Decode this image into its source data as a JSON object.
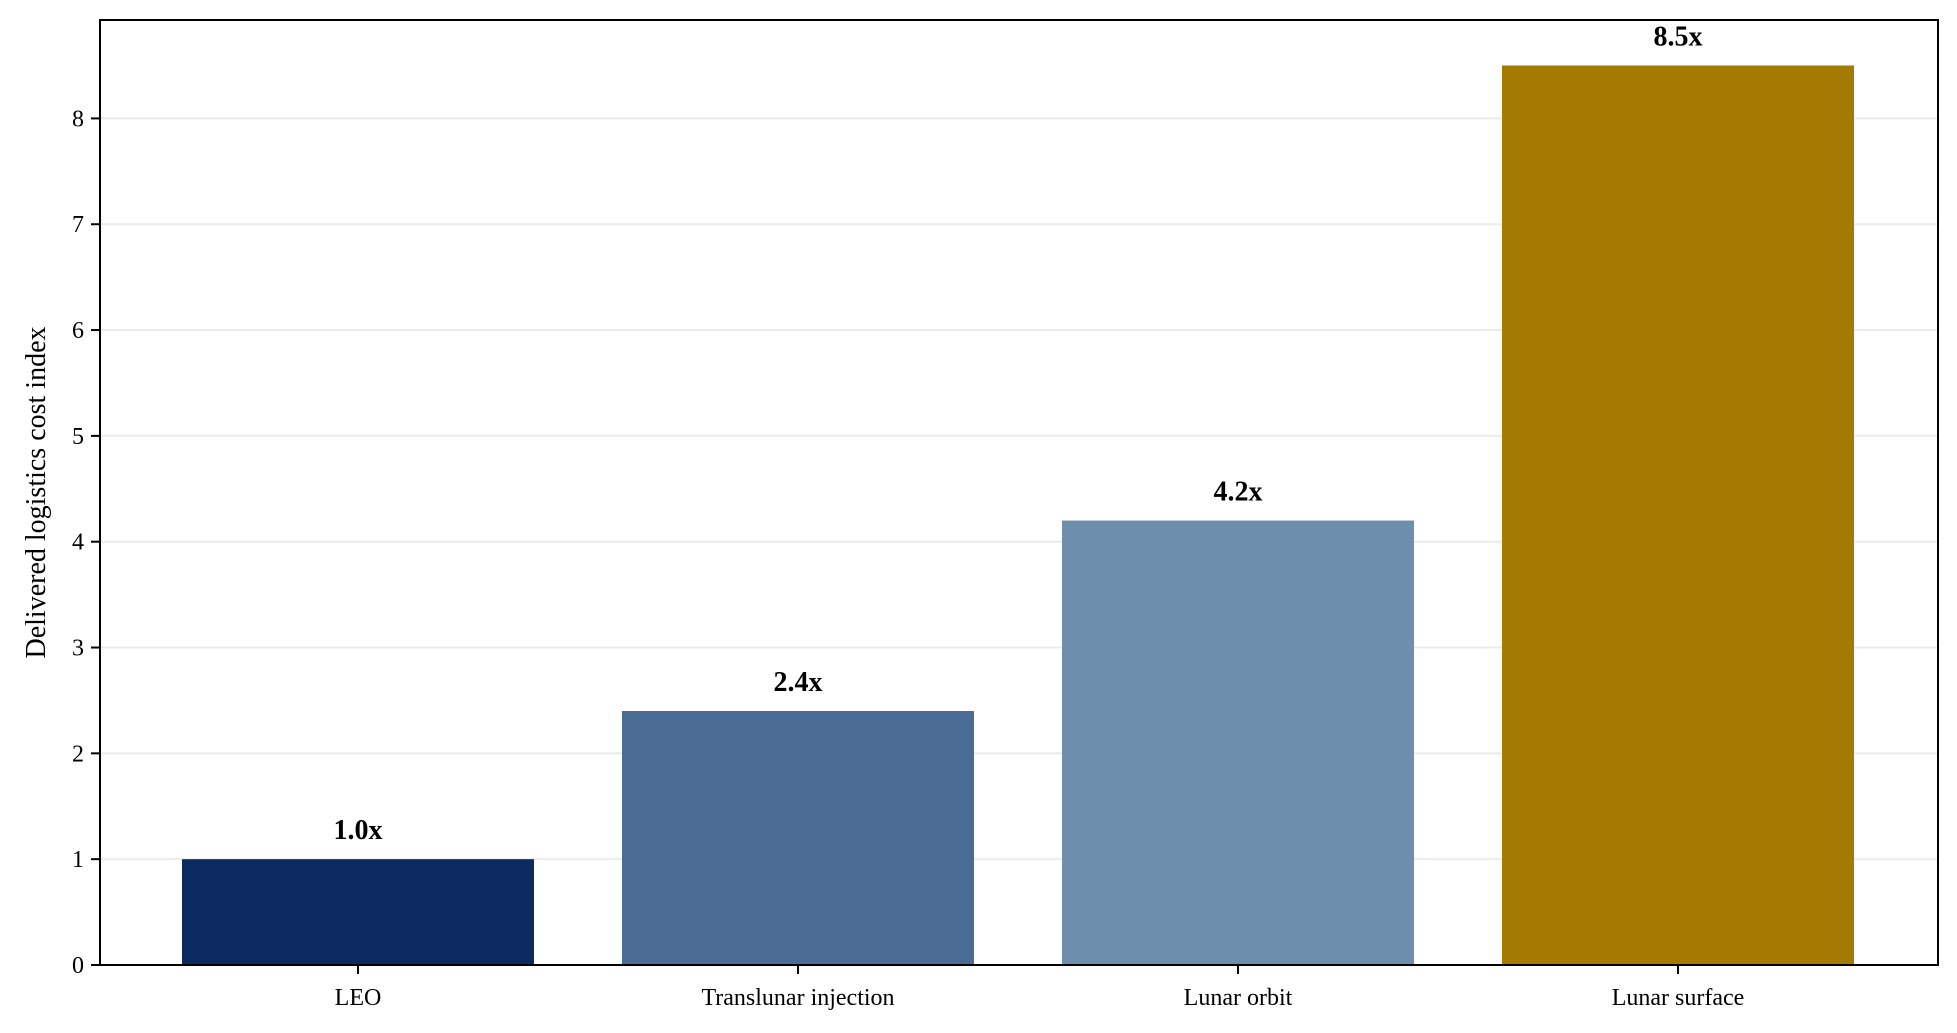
{
  "chart_data": {
    "type": "bar",
    "categories": [
      "LEO",
      "Translunar injection",
      "Lunar orbit",
      "Lunar surface"
    ],
    "values": [
      1.0,
      2.4,
      4.2,
      8.5
    ],
    "data_labels": [
      "1.0x",
      "2.4x",
      "4.2x",
      "8.5x"
    ],
    "colors": [
      "#0b2a5f",
      "#4a6b94",
      "#6e8eae",
      "#a47a02"
    ],
    "xlabel": "",
    "ylabel": "Delivered logistics cost index",
    "ylim": [
      0,
      8.93
    ],
    "yticks": [
      "0",
      "1",
      "2",
      "3",
      "4",
      "5",
      "6",
      "7",
      "8"
    ],
    "grid": "horizontal",
    "grid_color": "#ebebeb",
    "axis_color": "#000000"
  }
}
